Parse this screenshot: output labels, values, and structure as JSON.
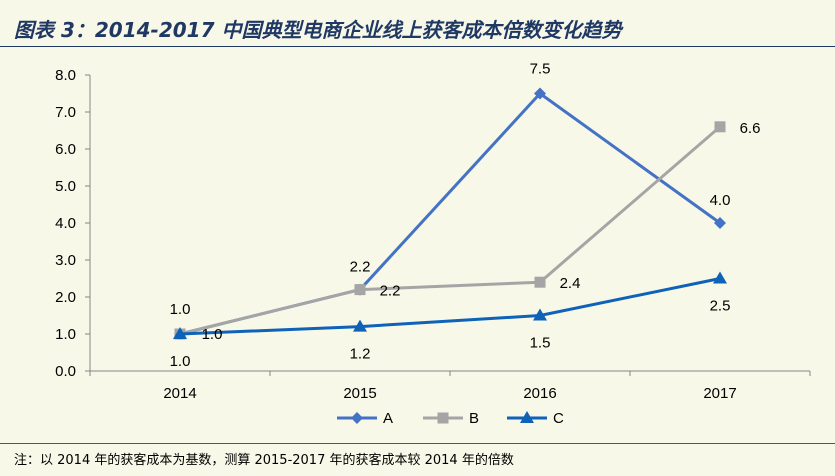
{
  "title": "图表 3：2014-2017 中国典型电商企业线上获客成本倍数变化趋势",
  "footnote": "注：以 2014 年的获客成本为基数，测算 2015-2017 年的获客成本较 2014 年的倍数",
  "chart_data": {
    "type": "line",
    "title": "",
    "xlabel": "",
    "ylabel": "",
    "categories": [
      "2014",
      "2015",
      "2016",
      "2017"
    ],
    "ylim": [
      0,
      8
    ],
    "yticks": [
      "0.0",
      "1.0",
      "2.0",
      "3.0",
      "4.0",
      "5.0",
      "6.0",
      "7.0",
      "8.0"
    ],
    "grid": false,
    "legend": "bottom",
    "series": [
      {
        "name": "A",
        "values": [
          1.0,
          2.2,
          7.5,
          4.0
        ],
        "labels": [
          "",
          "2.2",
          "7.5",
          "4.0"
        ],
        "color": "#4472c4",
        "marker": "diamond"
      },
      {
        "name": "B",
        "values": [
          1.0,
          2.2,
          2.4,
          6.6
        ],
        "labels": [
          "1.0",
          "2.2",
          "2.4",
          "6.6"
        ],
        "color": "#a5a5a5",
        "marker": "square"
      },
      {
        "name": "C",
        "values": [
          1.0,
          1.2,
          1.5,
          2.5
        ],
        "labels": [
          "1.0",
          "1.2",
          "1.5",
          "2.5"
        ],
        "color": "#0e62b8",
        "marker": "triangle"
      }
    ]
  }
}
